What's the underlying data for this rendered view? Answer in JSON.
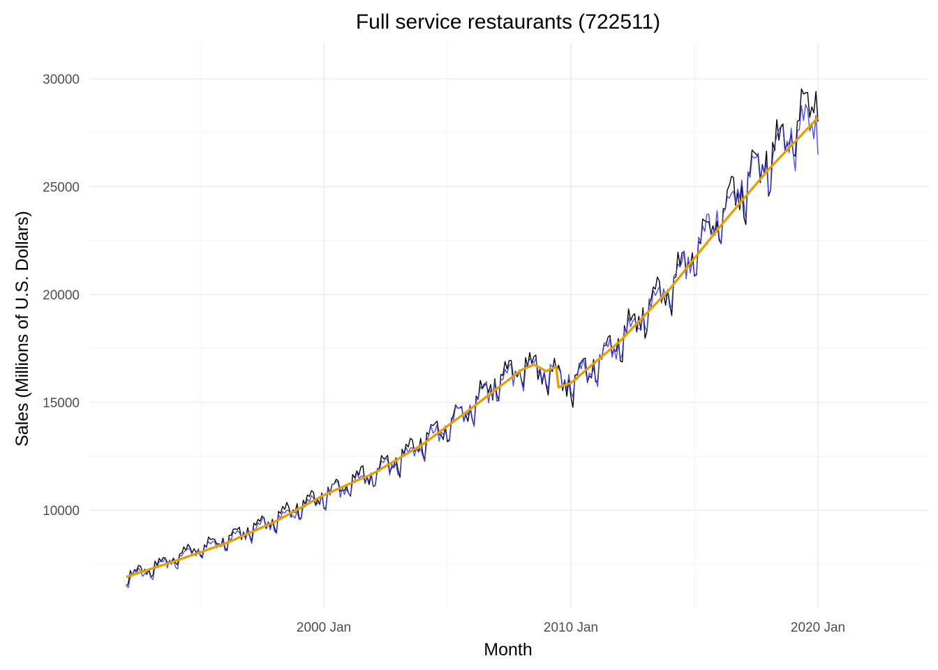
{
  "chart_data": {
    "type": "line",
    "title": "Full service restaurants (722511)",
    "xlabel": "Month",
    "ylabel": "Sales (Millions of U.S. Dollars)",
    "x_range": [
      "1992-01",
      "2020-01"
    ],
    "x_ticks": [
      {
        "label": "2000 Jan",
        "year": 2000
      },
      {
        "label": "2010 Jan",
        "year": 2010
      },
      {
        "label": "2020 Jan",
        "year": 2020
      }
    ],
    "y_ticks": [
      10000,
      15000,
      20000,
      25000,
      30000
    ],
    "grid": true,
    "legend": "none",
    "series": [
      {
        "color": "#000000",
        "role": "observed",
        "x_years": [
          1992,
          1993,
          1994,
          1995,
          1996,
          1997,
          1998,
          1999,
          2000,
          2001,
          2002,
          2003,
          2004,
          2005,
          2006,
          2007,
          2008,
          2009,
          2010,
          2011,
          2012,
          2013,
          2014,
          2015,
          2016,
          2017,
          2018,
          2019,
          2020
        ],
        "values": [
          6900,
          7300,
          7800,
          8200,
          8600,
          9100,
          9600,
          10100,
          10700,
          11200,
          11700,
          12300,
          13100,
          13900,
          14800,
          15900,
          16600,
          16300,
          15800,
          16700,
          17900,
          19100,
          20400,
          21900,
          23600,
          25000,
          26100,
          27600,
          29000
        ]
      },
      {
        "color": "#3a3ae0",
        "role": "fitted",
        "x_years": [
          1992,
          1993,
          1994,
          1995,
          1996,
          1997,
          1998,
          1999,
          2000,
          2001,
          2002,
          2003,
          2004,
          2005,
          2006,
          2007,
          2008,
          2009,
          2010,
          2011,
          2012,
          2013,
          2014,
          2015,
          2016,
          2017,
          2018,
          2019,
          2020
        ],
        "values": [
          6800,
          7200,
          7700,
          8100,
          8500,
          9000,
          9500,
          10000,
          10600,
          11100,
          11600,
          12200,
          13000,
          13800,
          14700,
          15800,
          16500,
          16400,
          15900,
          16600,
          17800,
          19000,
          20300,
          21800,
          23500,
          24900,
          26000,
          27400,
          27800
        ]
      },
      {
        "color": "#e69f00",
        "role": "trend",
        "x_years": [
          1992,
          1994,
          1996,
          1998,
          2000,
          2002,
          2004,
          2006,
          2008,
          2008.5,
          2009,
          2009.4,
          2009.5,
          2010,
          2012,
          2014,
          2016,
          2018,
          2020
        ],
        "values": [
          6900,
          7650,
          8450,
          9450,
          10700,
          11700,
          13050,
          14750,
          16500,
          16750,
          16450,
          16650,
          15700,
          15900,
          17850,
          20250,
          23100,
          25800,
          28200
        ]
      }
    ]
  }
}
